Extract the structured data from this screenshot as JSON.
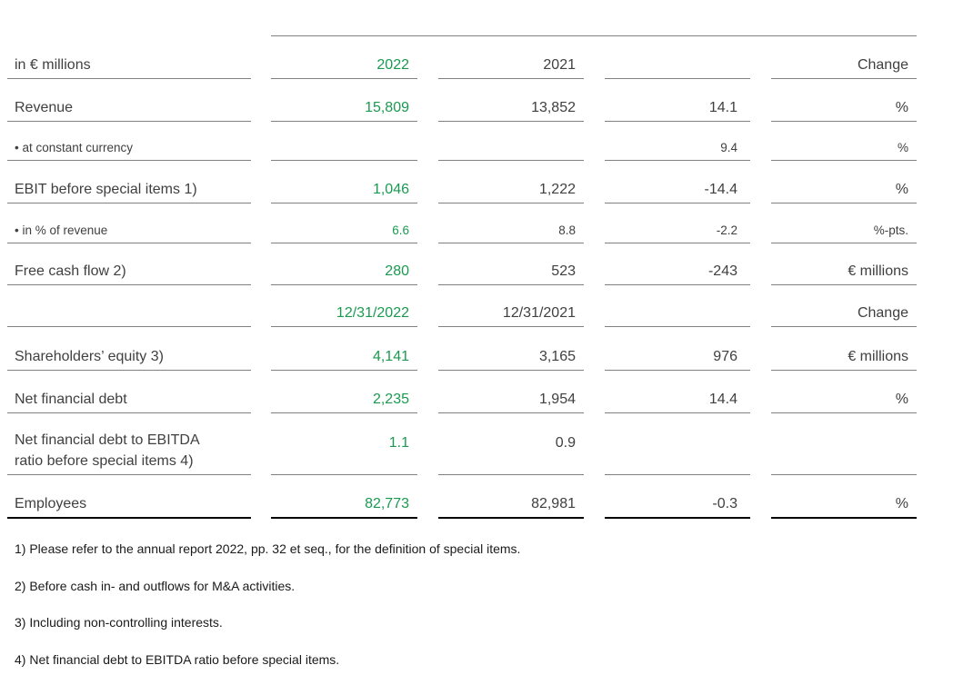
{
  "table": {
    "rows": [
      {
        "label": "in € millions",
        "v2022": "2022",
        "v2021": "2021",
        "change": "",
        "unit": "Change"
      },
      {
        "label": "Revenue",
        "v2022": "15,809",
        "v2021": "13,852",
        "change": "14.1",
        "unit": "%"
      },
      {
        "label": "• at constant currency",
        "v2022": "",
        "v2021": "",
        "change": "9.4",
        "unit": "%",
        "small": true
      },
      {
        "label": "EBIT before special items 1)",
        "v2022": "1,046",
        "v2021": "1,222",
        "change": "-14.4",
        "unit": "%"
      },
      {
        "label": "• in % of revenue",
        "v2022": "6.6",
        "v2021": "8.8",
        "change": "-2.2",
        "unit": "%-pts.",
        "small": true
      },
      {
        "label": "Free cash flow 2)",
        "v2022": "280",
        "v2021": "523",
        "change": "-243",
        "unit": "€ millions"
      },
      {
        "label": "",
        "v2022": "12/31/2022",
        "v2021": "12/31/2021",
        "change": "",
        "unit": "Change"
      },
      {
        "label": "Shareholders’ equity 3)",
        "v2022": "4,141",
        "v2021": "3,165",
        "change": "976",
        "unit": "€ millions"
      },
      {
        "label": "Net financial debt",
        "v2022": "2,235",
        "v2021": "1,954",
        "change": "14.4",
        "unit": "%"
      },
      {
        "label": "Net financial debt to EBITDA ratio before special items 4)",
        "label_lines": [
          "Net financial debt to EBITDA",
          "ratio before special items 4)"
        ],
        "v2022": "1.1",
        "v2021": "0.9",
        "change": "",
        "unit": ""
      },
      {
        "label": "Employees",
        "v2022": "82,773",
        "v2021": "82,981",
        "change": "-0.3",
        "unit": "%"
      }
    ]
  },
  "footnotes": [
    "1) Please refer to the annual report 2022, pp. 32 et seq., for the definition of special items.",
    "2) Before cash in- and outflows for M&A activities.",
    "3) Including non-controlling interests.",
    "4) Net financial debt to EBITDA ratio before special items."
  ],
  "colors": {
    "highlight_green": "#1a9a50",
    "text_gray": "#404040",
    "rule_gray": "#808080"
  }
}
